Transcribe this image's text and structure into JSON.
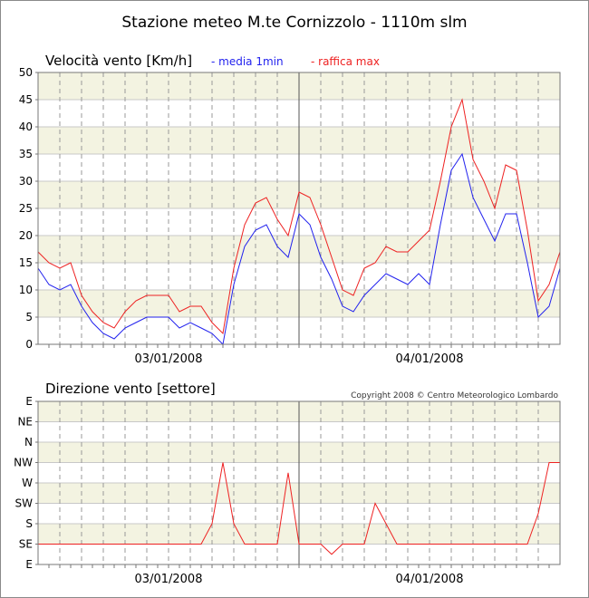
{
  "title": "Stazione meteo M.te Cornizzolo - 1110m slm",
  "copyright": "Copyright 2008 © Centro Meteorologico Lombardo",
  "colors": {
    "media": "#2222ee",
    "raffica": "#ee2222",
    "band": "#f3f3e1",
    "grid": "#aaaaaa"
  },
  "chart_data": [
    {
      "type": "line",
      "title": "Velocità vento [Km/h]",
      "legend": [
        "- media 1min",
        "- raffica max"
      ],
      "ylabel": "",
      "ylim": [
        0,
        50
      ],
      "y_ticks": [
        "0",
        "5",
        "10",
        "15",
        "20",
        "25",
        "30",
        "35",
        "40",
        "45",
        "50"
      ],
      "x_date_labels": [
        "03/01/2008",
        "04/01/2008"
      ],
      "x_hours": [
        0,
        48
      ],
      "grid": true,
      "series": [
        {
          "name": "media 1min",
          "x": [
            0,
            1,
            2,
            3,
            4,
            5,
            6,
            7,
            8,
            9,
            10,
            11,
            12,
            13,
            14,
            15,
            16,
            17,
            18,
            19,
            20,
            21,
            22,
            23,
            24,
            25,
            26,
            27,
            28,
            29,
            30,
            31,
            32,
            33,
            34,
            35,
            36,
            37,
            38,
            39,
            40,
            41,
            42,
            43,
            44,
            45,
            46,
            47,
            48
          ],
          "values": [
            14,
            11,
            10,
            11,
            7,
            4,
            2,
            1,
            3,
            4,
            5,
            5,
            5,
            3,
            4,
            3,
            2,
            0,
            11,
            18,
            21,
            22,
            18,
            16,
            24,
            22,
            16,
            12,
            7,
            6,
            9,
            11,
            13,
            12,
            11,
            13,
            11,
            22,
            32,
            35,
            27,
            23,
            19,
            24,
            24,
            15,
            5,
            7,
            14
          ]
        },
        {
          "name": "raffica max",
          "x": [
            0,
            1,
            2,
            3,
            4,
            5,
            6,
            7,
            8,
            9,
            10,
            11,
            12,
            13,
            14,
            15,
            16,
            17,
            18,
            19,
            20,
            21,
            22,
            23,
            24,
            25,
            26,
            27,
            28,
            29,
            30,
            31,
            32,
            33,
            34,
            35,
            36,
            37,
            38,
            39,
            40,
            41,
            42,
            43,
            44,
            45,
            46,
            47,
            48
          ],
          "values": [
            17,
            15,
            14,
            15,
            9,
            6,
            4,
            3,
            6,
            8,
            9,
            9,
            9,
            6,
            7,
            7,
            4,
            2,
            14,
            22,
            26,
            27,
            23,
            20,
            28,
            27,
            22,
            16,
            10,
            9,
            14,
            15,
            18,
            17,
            17,
            19,
            21,
            30,
            40,
            45,
            34,
            30,
            25,
            33,
            32,
            21,
            8,
            11,
            17
          ]
        }
      ]
    },
    {
      "type": "line",
      "title": "Direzione vento [settore]",
      "y_ticks": [
        "E",
        "SE",
        "S",
        "SW",
        "W",
        "NW",
        "N",
        "NE",
        "E"
      ],
      "x_date_labels": [
        "03/01/2008",
        "04/01/2008"
      ],
      "x_hours": [
        0,
        48
      ],
      "grid": true,
      "series": [
        {
          "name": "",
          "x": [
            0,
            1,
            2,
            3,
            4,
            5,
            6,
            7,
            8,
            9,
            10,
            11,
            12,
            13,
            14,
            15,
            16,
            17,
            18,
            19,
            20,
            21,
            22,
            23,
            24,
            25,
            26,
            27,
            28,
            29,
            30,
            31,
            32,
            33,
            34,
            35,
            36,
            37,
            38,
            39,
            40,
            41,
            42,
            43,
            44,
            45,
            46,
            47,
            48
          ],
          "values": [
            1,
            1,
            1,
            1,
            1,
            1,
            1,
            1,
            1,
            1,
            1,
            1,
            1,
            1,
            1,
            1,
            2,
            5,
            2,
            1,
            1,
            1,
            1,
            4.5,
            1,
            1,
            1,
            0.5,
            1,
            1,
            1,
            3,
            2,
            1,
            1,
            1,
            1,
            1,
            1,
            1,
            1,
            1,
            1,
            1,
            1,
            1,
            2.5,
            5,
            5
          ]
        }
      ]
    }
  ]
}
